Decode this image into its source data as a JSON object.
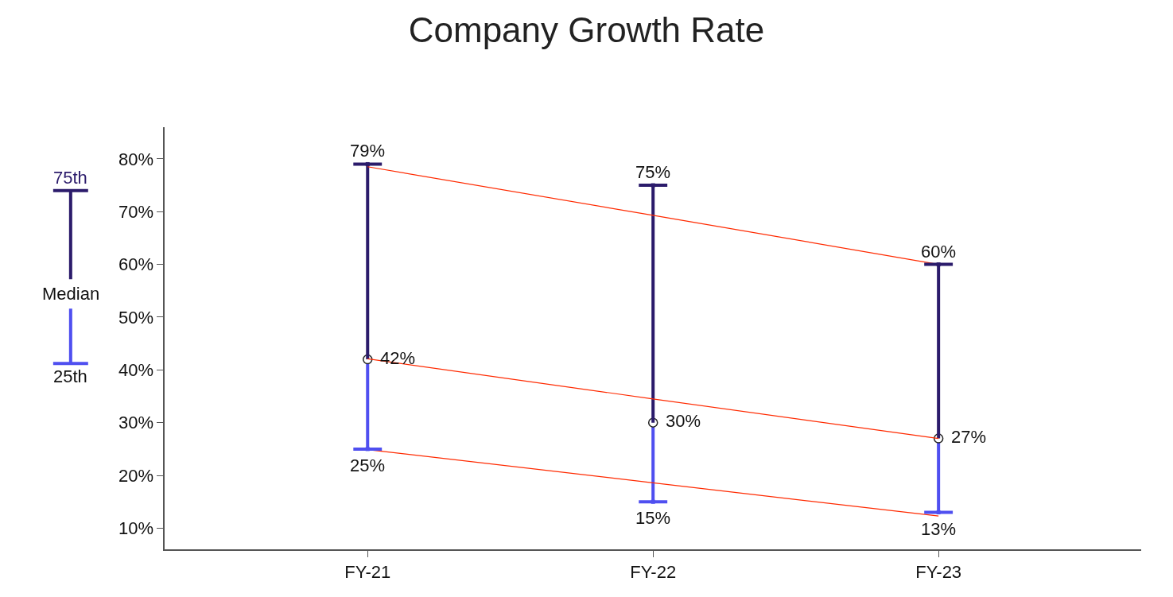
{
  "chart_data": {
    "type": "scatter",
    "title": "Company Growth Rate",
    "categories": [
      "FY-21",
      "FY-22",
      "FY-23"
    ],
    "series": [
      {
        "name": "25th",
        "color": "#4f4ff0",
        "values": [
          25,
          15,
          13
        ],
        "value_labels": [
          "25%",
          "15%",
          "13%"
        ]
      },
      {
        "name": "Median",
        "color": "#ffffff",
        "values": [
          42,
          30,
          27
        ],
        "value_labels": [
          "42%",
          "30%",
          "27%"
        ],
        "marker": "circle"
      },
      {
        "name": "75th",
        "color": "#2b1b6b",
        "values": [
          79,
          75,
          60
        ],
        "value_labels": [
          "79%",
          "75%",
          "60%"
        ]
      },
      {
        "type": "line",
        "color": "#ff2a00",
        "values": [
          78.5,
          69.3,
          60.0
        ]
      },
      {
        "type": "line",
        "color": "#ff2a00",
        "values": [
          42.1,
          34.5,
          27.0
        ]
      },
      {
        "type": "line",
        "color": "#ff2a00",
        "values": [
          24.9,
          18.6,
          12.3
        ]
      }
    ],
    "ylim": [
      6,
      86
    ],
    "yticks": [
      {
        "value": 10,
        "label": "10%"
      },
      {
        "value": 20,
        "label": "20%"
      },
      {
        "value": 30,
        "label": "30%"
      },
      {
        "value": 40,
        "label": "40%"
      },
      {
        "value": 50,
        "label": "50%"
      },
      {
        "value": 60,
        "label": "60%"
      },
      {
        "value": 70,
        "label": "70%"
      },
      {
        "value": 80,
        "label": "80%"
      }
    ],
    "legend": "left"
  }
}
